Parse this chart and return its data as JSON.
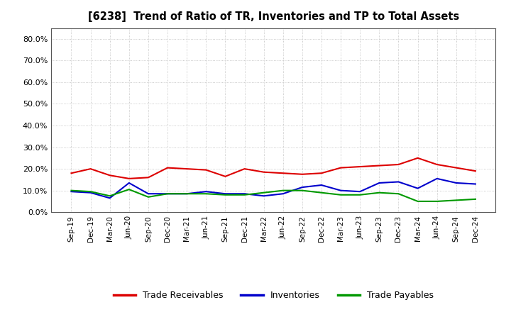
{
  "title": "[6238]  Trend of Ratio of TR, Inventories and TP to Total Assets",
  "x_labels": [
    "Sep-19",
    "Dec-19",
    "Mar-20",
    "Jun-20",
    "Sep-20",
    "Dec-20",
    "Mar-21",
    "Jun-21",
    "Sep-21",
    "Dec-21",
    "Mar-22",
    "Jun-22",
    "Sep-22",
    "Dec-22",
    "Mar-23",
    "Jun-23",
    "Sep-23",
    "Dec-23",
    "Mar-24",
    "Jun-24",
    "Sep-24",
    "Dec-24"
  ],
  "trade_receivables": [
    0.18,
    0.2,
    0.17,
    0.155,
    0.16,
    0.205,
    0.2,
    0.195,
    0.165,
    0.2,
    0.185,
    0.18,
    0.175,
    0.18,
    0.205,
    0.21,
    0.215,
    0.22,
    0.25,
    0.22,
    0.205,
    0.19
  ],
  "inventories": [
    0.095,
    0.09,
    0.065,
    0.135,
    0.085,
    0.085,
    0.085,
    0.095,
    0.085,
    0.085,
    0.075,
    0.085,
    0.115,
    0.125,
    0.1,
    0.095,
    0.135,
    0.14,
    0.11,
    0.155,
    0.135,
    0.13
  ],
  "trade_payables": [
    0.1,
    0.095,
    0.075,
    0.105,
    0.07,
    0.085,
    0.085,
    0.085,
    0.08,
    0.08,
    0.09,
    0.1,
    0.1,
    0.09,
    0.08,
    0.08,
    0.09,
    0.085,
    0.05,
    0.05,
    0.055,
    0.06
  ],
  "ylim": [
    0.0,
    0.85
  ],
  "yticks": [
    0.0,
    0.1,
    0.2,
    0.3,
    0.4,
    0.5,
    0.6,
    0.7,
    0.8
  ],
  "color_tr": "#dd0000",
  "color_inv": "#0000cc",
  "color_tp": "#009900",
  "bg_color": "#ffffff",
  "plot_bg": "#f0f0f0",
  "grid_color": "#bbbbbb",
  "legend_labels": [
    "Trade Receivables",
    "Inventories",
    "Trade Payables"
  ]
}
